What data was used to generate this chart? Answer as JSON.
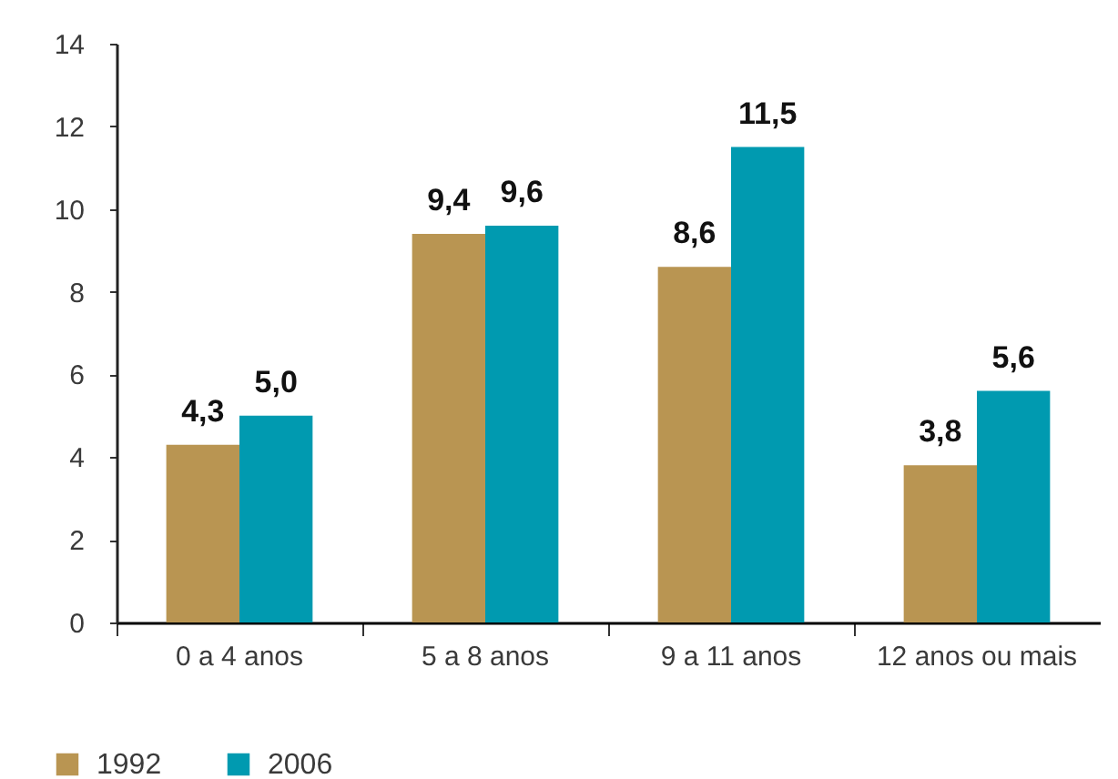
{
  "chart_data": {
    "type": "bar",
    "categories": [
      "0 a 4 anos",
      "5 a 8 anos",
      "9 a 11 anos",
      "12 anos ou mais"
    ],
    "series": [
      {
        "name": "1992",
        "color": "#b99552",
        "values": [
          4.3,
          9.4,
          8.6,
          3.8
        ],
        "value_labels": [
          "4,3",
          "9,4",
          "8,6",
          "3,8"
        ]
      },
      {
        "name": "2006",
        "color": "#009ab0",
        "values": [
          5.0,
          9.6,
          11.5,
          5.6
        ],
        "value_labels": [
          "5,0",
          "9,6",
          "11,5",
          "5,6"
        ]
      }
    ],
    "ylim": [
      0,
      14
    ],
    "yticks": [
      0,
      2,
      4,
      6,
      8,
      10,
      12,
      14
    ],
    "grid": false,
    "legend": "bottom left"
  }
}
